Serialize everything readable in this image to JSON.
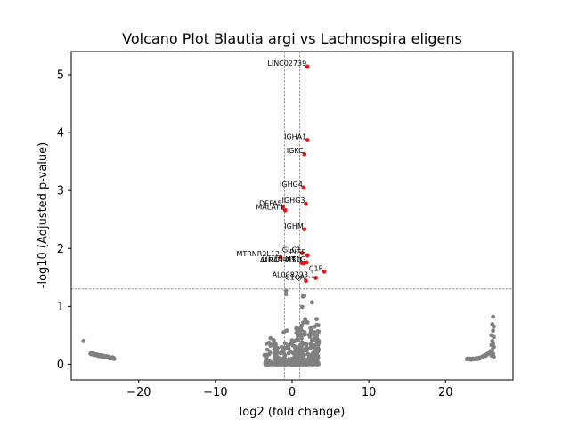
{
  "chart_data": {
    "type": "scatter",
    "title": "Volcano Plot Blautia argi vs Lachnospira eligens",
    "xlabel": "log2 (fold change)",
    "ylabel": "-log10 (Adjusted p-value)",
    "xlim": [
      -28.8,
      28.8
    ],
    "ylim": [
      -0.27,
      5.4
    ],
    "xticks": [
      -20,
      -10,
      0,
      10,
      20
    ],
    "xtick_labels": [
      "−20",
      "−10",
      "0",
      "10",
      "20"
    ],
    "yticks": [
      0,
      1,
      2,
      3,
      4,
      5
    ],
    "ytick_labels": [
      "0",
      "1",
      "2",
      "3",
      "4",
      "5"
    ],
    "grid": false,
    "thresholds": {
      "fold_change_lines": [
        -1,
        1
      ],
      "pvalue_line": 1.3
    },
    "colors": {
      "significant": "#e41a1c",
      "nonsignificant": "#808080",
      "threshold_line": "#808080"
    },
    "significant_points": [
      {
        "label": "LINC02739",
        "x": 2.0,
        "y": 5.14
      },
      {
        "label": "IGHA1",
        "x": 2.0,
        "y": 3.87
      },
      {
        "label": "IGKC",
        "x": 1.6,
        "y": 3.63
      },
      {
        "label": "IGHG4",
        "x": 1.5,
        "y": 3.05
      },
      {
        "label": "IGHG3",
        "x": 1.8,
        "y": 2.77
      },
      {
        "label": "DEFA5",
        "x": -1.2,
        "y": 2.72
      },
      {
        "label": "MALAT1",
        "x": -0.9,
        "y": 2.66
      },
      {
        "label": "IGHM",
        "x": 1.6,
        "y": 2.33
      },
      {
        "label": "IGLC1",
        "x": 1.3,
        "y": 1.92
      },
      {
        "label": "PIGR",
        "x": 2.0,
        "y": 1.88
      },
      {
        "label": "MTRNR2L12",
        "x": -1.5,
        "y": 1.85
      },
      {
        "label": "MT1G",
        "x": 1.9,
        "y": 1.76
      },
      {
        "label": "LIMD1-AS1",
        "x": 1.2,
        "y": 1.75
      },
      {
        "label": "AL049953.1",
        "x": 1.5,
        "y": 1.74
      },
      {
        "label": "C1R",
        "x": 4.2,
        "y": 1.6
      },
      {
        "label": "AL008723.1",
        "x": 3.1,
        "y": 1.49
      },
      {
        "label": "C1QA",
        "x": 1.8,
        "y": 1.44
      }
    ],
    "nonsignificant_clusters": [
      {
        "name": "left-tail",
        "x_range": [
          -27.2,
          -23.2
        ]
      },
      {
        "name": "center",
        "x_range": [
          -3.6,
          3.6
        ]
      },
      {
        "name": "right-tail",
        "x_range": [
          22.8,
          26.6
        ]
      }
    ]
  }
}
